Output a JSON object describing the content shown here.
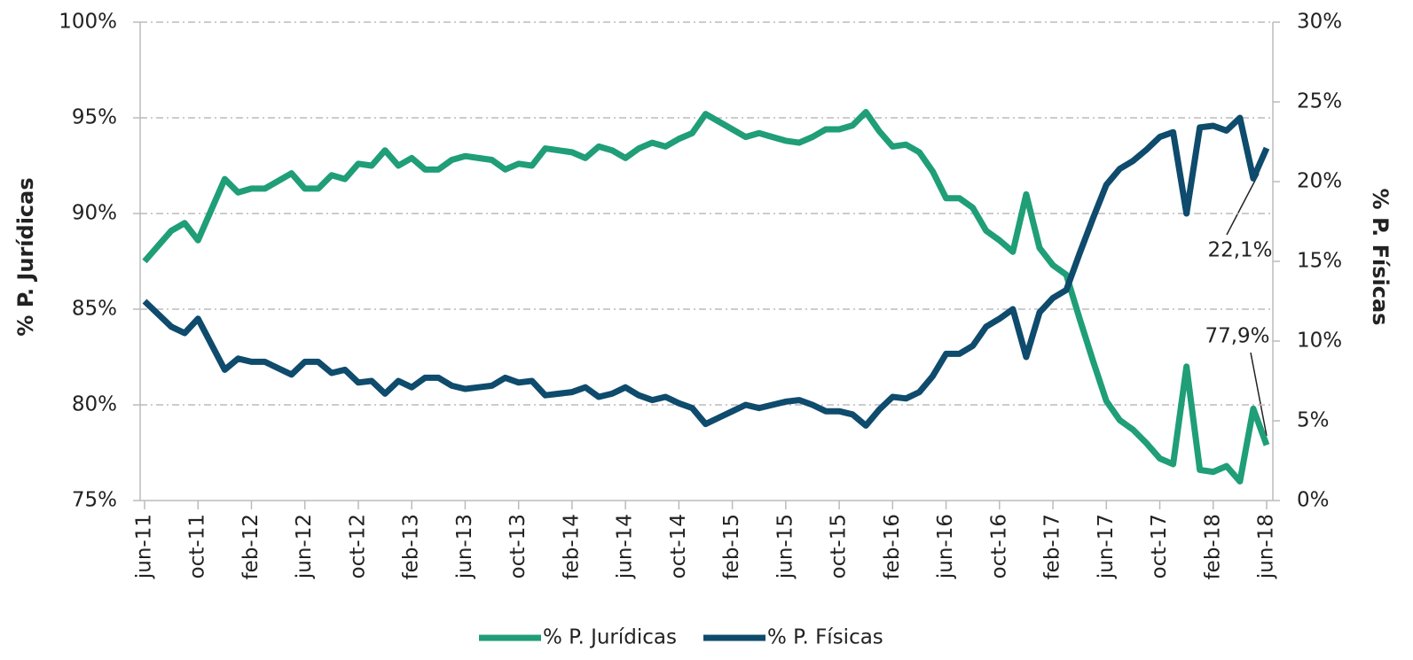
{
  "chart_data": {
    "type": "line",
    "categories": [
      "jun-11",
      null,
      null,
      null,
      "oct-11",
      null,
      null,
      null,
      "feb-12",
      null,
      null,
      null,
      "jun-12",
      null,
      null,
      null,
      "oct-12",
      null,
      null,
      null,
      "feb-13",
      null,
      null,
      null,
      "jun-13",
      null,
      null,
      null,
      "oct-13",
      null,
      null,
      null,
      "feb-14",
      null,
      null,
      null,
      "jun-14",
      null,
      null,
      null,
      "oct-14",
      null,
      null,
      null,
      "feb-15",
      null,
      null,
      null,
      "jun-15",
      null,
      null,
      null,
      "oct-15",
      null,
      null,
      null,
      "feb-16",
      null,
      null,
      null,
      "jun-16",
      null,
      null,
      null,
      "oct-16",
      null,
      null,
      null,
      "feb-17",
      null,
      null,
      null,
      "jun-17",
      null,
      null,
      null,
      "oct-17",
      null,
      null,
      null,
      "feb-18",
      null,
      null,
      null,
      "jun-18"
    ],
    "series": [
      {
        "name": "% P. Jurídicas",
        "color": "#1f9e78",
        "axis": "y",
        "values": [
          87.5,
          88.3,
          89.1,
          89.5,
          88.6,
          90.2,
          91.8,
          91.1,
          91.3,
          91.3,
          91.7,
          92.1,
          91.3,
          91.3,
          92.0,
          91.8,
          92.6,
          92.5,
          93.3,
          92.5,
          92.9,
          92.3,
          92.3,
          92.8,
          93.0,
          92.9,
          92.8,
          92.3,
          92.6,
          92.5,
          93.4,
          93.3,
          93.2,
          92.9,
          93.5,
          93.3,
          92.9,
          93.4,
          93.7,
          93.5,
          93.9,
          94.2,
          95.2,
          94.8,
          94.4,
          94.0,
          94.2,
          94.0,
          93.8,
          93.7,
          94.0,
          94.4,
          94.4,
          94.6,
          95.3,
          94.3,
          93.5,
          93.6,
          93.2,
          92.2,
          90.8,
          90.8,
          90.3,
          89.1,
          88.6,
          88.0,
          91.0,
          88.2,
          87.3,
          86.8,
          84.5,
          82.3,
          80.2,
          79.2,
          78.7,
          78.0,
          77.2,
          76.9,
          82.0,
          76.6,
          76.5,
          76.8,
          76.0,
          79.8,
          77.9
        ],
        "value_labels": [
          null,
          null,
          null,
          null,
          null,
          null,
          null,
          null,
          null,
          null,
          null,
          null,
          null,
          null,
          null,
          null,
          null,
          null,
          null,
          null,
          null,
          null,
          null,
          null,
          null,
          null,
          null,
          null,
          null,
          null,
          null,
          null,
          null,
          null,
          null,
          null,
          null,
          null,
          null,
          null,
          null,
          null,
          null,
          null,
          null,
          null,
          null,
          null,
          null,
          null,
          null,
          null,
          null,
          null,
          null,
          null,
          null,
          null,
          null,
          null,
          null,
          null,
          null,
          null,
          null,
          null,
          null,
          null,
          null,
          null,
          null,
          null,
          null,
          null,
          null,
          null,
          null,
          null,
          null,
          null,
          null,
          null,
          null,
          null,
          "77,9%"
        ]
      },
      {
        "name": "% P. Físicas",
        "color": "#0e4b6c",
        "axis": "y2",
        "values": [
          12.5,
          11.7,
          10.9,
          10.5,
          11.4,
          9.8,
          8.2,
          8.9,
          8.7,
          8.7,
          8.3,
          7.9,
          8.7,
          8.7,
          8.0,
          8.2,
          7.4,
          7.5,
          6.7,
          7.5,
          7.1,
          7.7,
          7.7,
          7.2,
          7.0,
          7.1,
          7.2,
          7.7,
          7.4,
          7.5,
          6.6,
          6.7,
          6.8,
          7.1,
          6.5,
          6.7,
          7.1,
          6.6,
          6.3,
          6.5,
          6.1,
          5.8,
          4.8,
          5.2,
          5.6,
          6.0,
          5.8,
          6.0,
          6.2,
          6.3,
          6.0,
          5.6,
          5.6,
          5.4,
          4.7,
          5.7,
          6.5,
          6.4,
          6.8,
          7.8,
          9.2,
          9.2,
          9.7,
          10.9,
          11.4,
          12.0,
          9.0,
          11.8,
          12.7,
          13.2,
          15.5,
          17.7,
          19.8,
          20.8,
          21.3,
          22.0,
          22.8,
          23.1,
          18.0,
          23.4,
          23.5,
          23.2,
          24.0,
          20.2,
          22.1
        ],
        "value_labels": [
          null,
          null,
          null,
          null,
          null,
          null,
          null,
          null,
          null,
          null,
          null,
          null,
          null,
          null,
          null,
          null,
          null,
          null,
          null,
          null,
          null,
          null,
          null,
          null,
          null,
          null,
          null,
          null,
          null,
          null,
          null,
          null,
          null,
          null,
          null,
          null,
          null,
          null,
          null,
          null,
          null,
          null,
          null,
          null,
          null,
          null,
          null,
          null,
          null,
          null,
          null,
          null,
          null,
          null,
          null,
          null,
          null,
          null,
          null,
          null,
          null,
          null,
          null,
          null,
          null,
          null,
          null,
          null,
          null,
          null,
          null,
          null,
          null,
          null,
          null,
          null,
          null,
          null,
          null,
          null,
          null,
          null,
          null,
          null,
          "22,1%"
        ]
      }
    ],
    "ylabel": "% P. Jurídicas",
    "y2label": "% P. Físicas",
    "ylim": [
      75,
      100
    ],
    "yticks": [
      {
        "value": 75,
        "label": "75%"
      },
      {
        "value": 80,
        "label": "80%"
      },
      {
        "value": 85,
        "label": "85%"
      },
      {
        "value": 90,
        "label": "90%"
      },
      {
        "value": 95,
        "label": "95%"
      },
      {
        "value": 100,
        "label": "100%"
      }
    ],
    "y2lim": [
      0,
      30
    ],
    "y2ticks": [
      {
        "value": 0,
        "label": "0%"
      },
      {
        "value": 5,
        "label": "5%"
      },
      {
        "value": 10,
        "label": "10%"
      },
      {
        "value": 15,
        "label": "15%"
      },
      {
        "value": 20,
        "label": "20%"
      },
      {
        "value": 25,
        "label": "25%"
      },
      {
        "value": 30,
        "label": "30%"
      }
    ],
    "grid": true,
    "legend": "bottom"
  }
}
